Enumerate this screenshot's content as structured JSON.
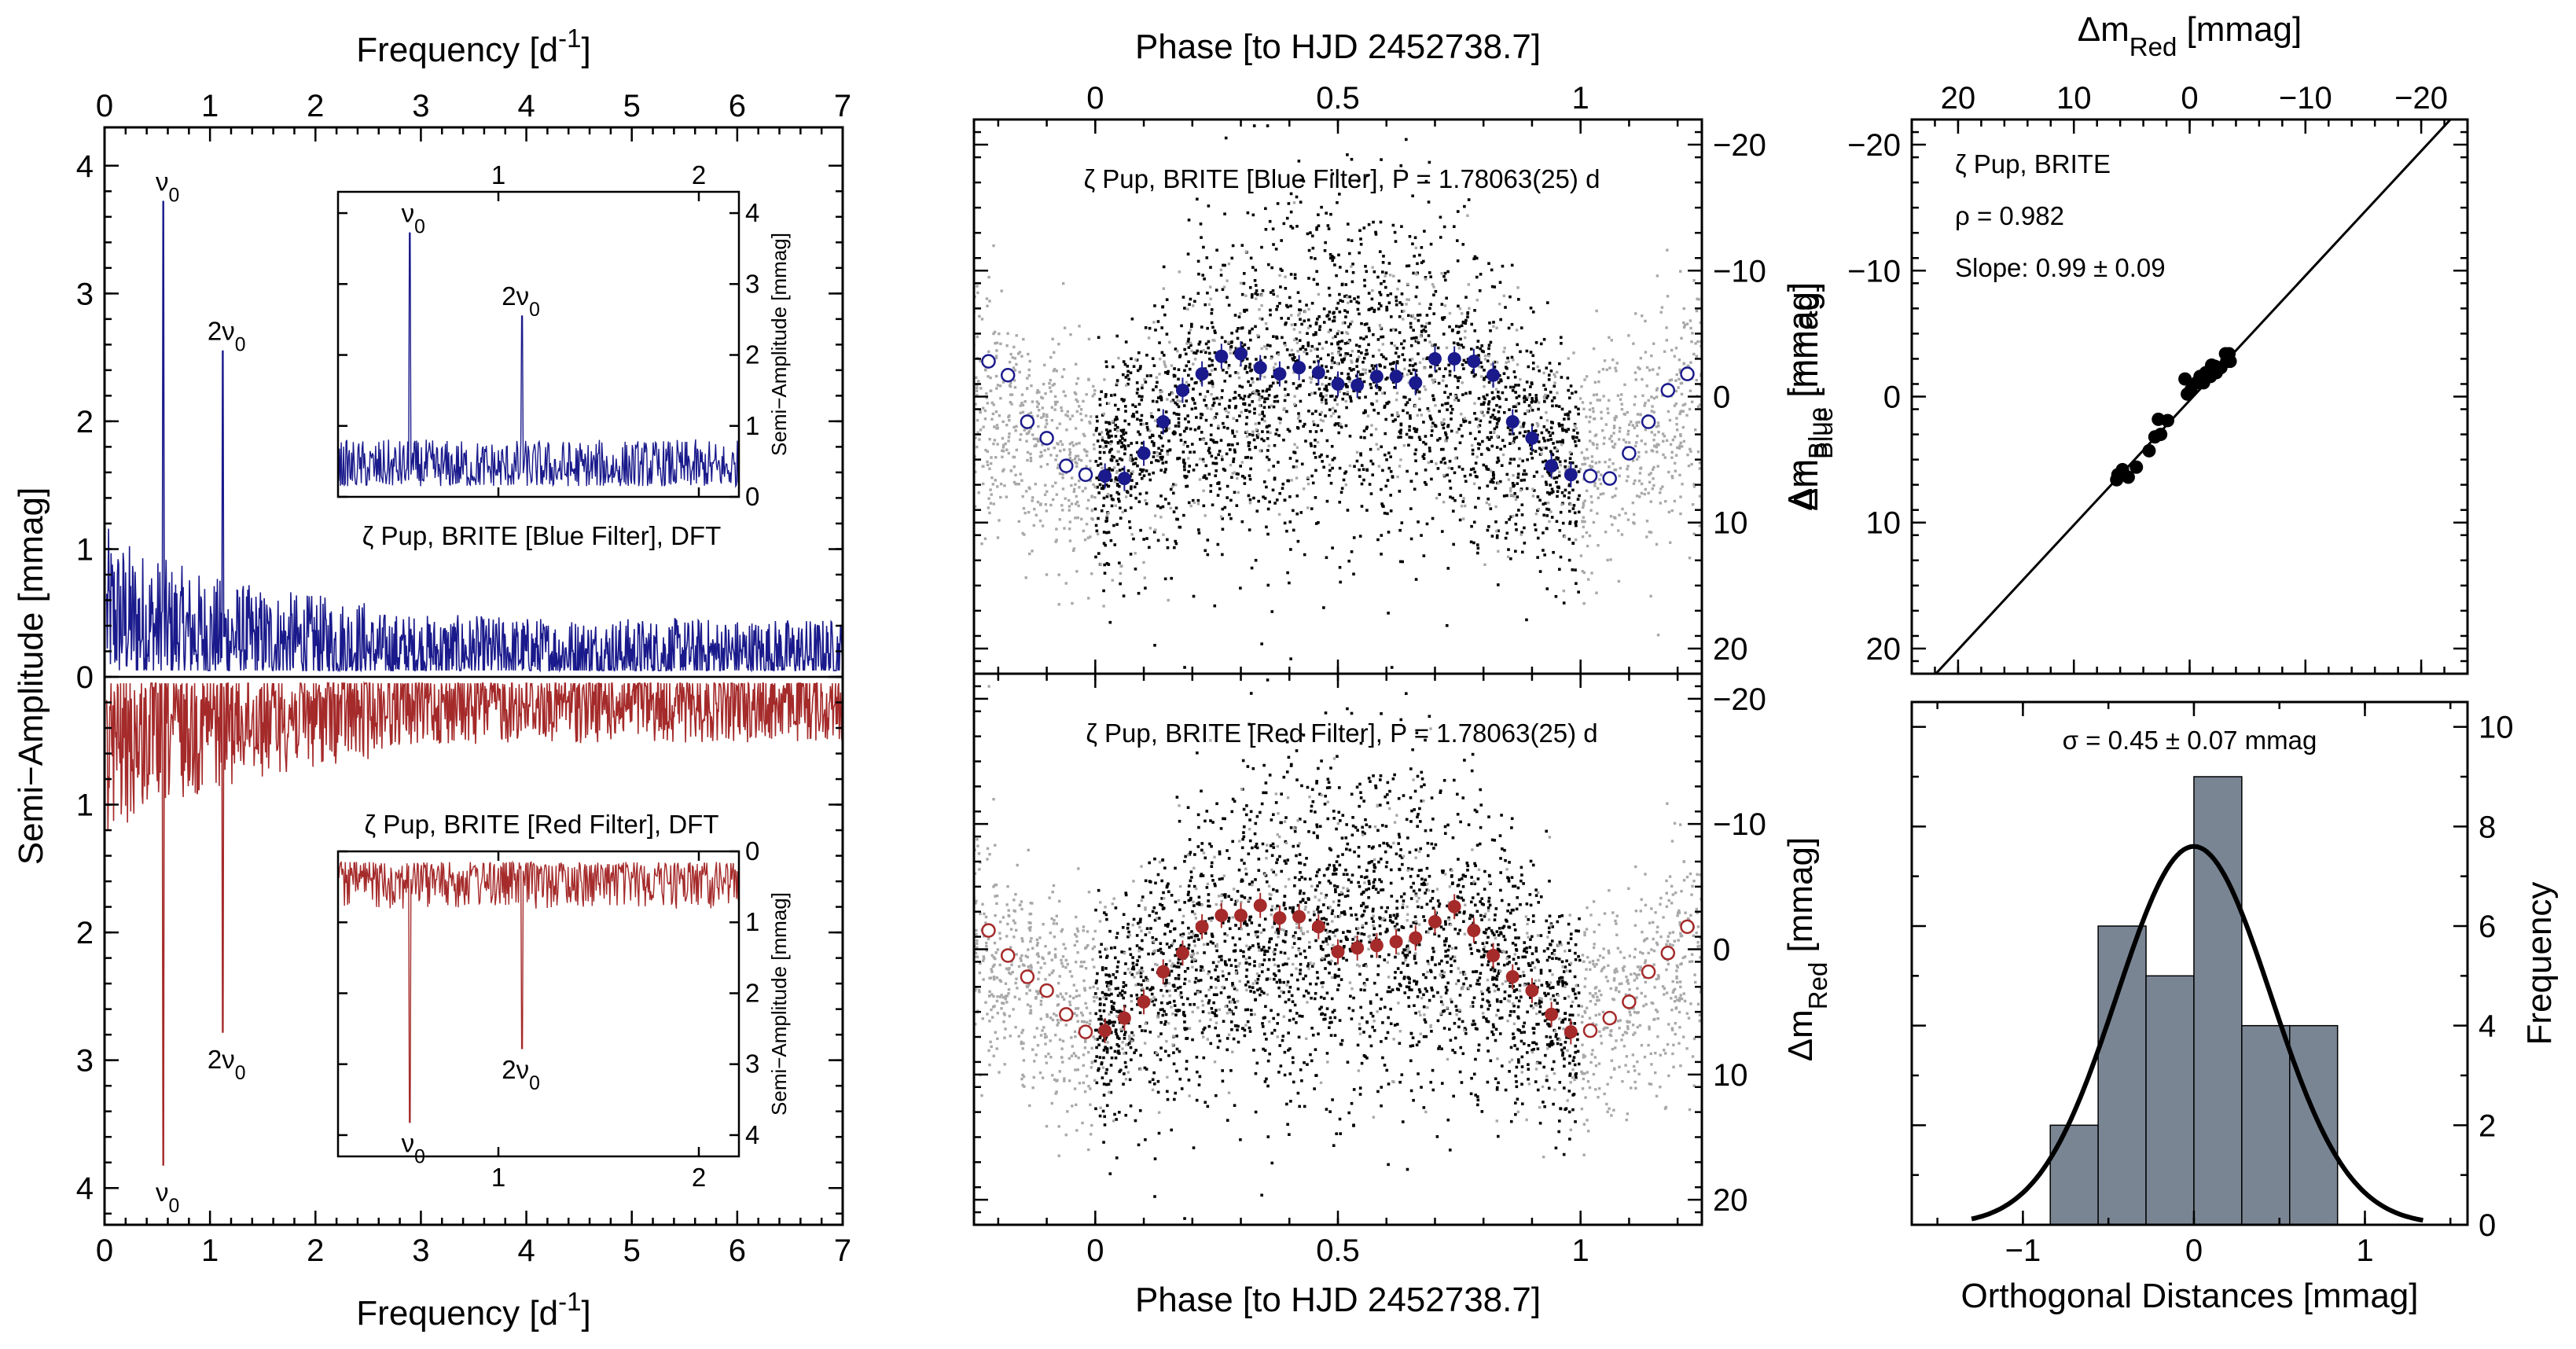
{
  "colors": {
    "blue": "#1a1a8c",
    "red": "#a52a2a",
    "black": "#000000",
    "gray": "#a8a8a8",
    "bar": "#7a8594"
  },
  "chart_data": [
    {
      "type": "line",
      "name": "amplitude-spectra",
      "xlabel_top": "Frequency [d^-1]",
      "xlabel_bottom": "Frequency [d^-1]",
      "ylabel": "Semi−Amplitude [mmag]",
      "xlim": [
        0,
        7
      ],
      "ylim": [
        -4.3,
        4.3
      ],
      "x_ticks": [
        "0",
        "1",
        "2",
        "3",
        "4",
        "5",
        "6",
        "7"
      ],
      "y_ticks": [
        "4",
        "3",
        "2",
        "1",
        "0",
        "1",
        "2",
        "3",
        "4"
      ],
      "series": [
        {
          "name": "BRITE Blue Filter",
          "peaks": [
            {
              "x": 0.56,
              "y": 3.72,
              "label": "v0"
            },
            {
              "x": 1.12,
              "y": 2.55,
              "label": "2v0"
            }
          ],
          "noise_level": 0.45
        },
        {
          "name": "BRITE Red Filter",
          "peaks": [
            {
              "x": 0.56,
              "y": 3.82,
              "label": "v0"
            },
            {
              "x": 1.12,
              "y": 2.78,
              "label": "2v0"
            }
          ],
          "noise_level": 0.5
        }
      ],
      "insets": [
        {
          "title": "ζ Pup, BRITE [Blue Filter], DFT",
          "ylabel": "Semi−Amplitude [mmag]",
          "xlim": [
            0.2,
            2.2
          ],
          "ylim": [
            0,
            4.3
          ],
          "x_ticks": [
            "1",
            "2"
          ],
          "y_ticks": [
            "0",
            "1",
            "2",
            "3",
            "4"
          ],
          "peak_labels": [
            "v0",
            "2v0"
          ]
        },
        {
          "title": "ζ Pup, BRITE [Red Filter], DFT",
          "ylabel": "Semi−Amplitude [mmag]",
          "xlim": [
            0.2,
            2.2
          ],
          "ylim": [
            0,
            4.3
          ],
          "x_ticks": [
            "1",
            "2"
          ],
          "y_ticks": [
            "0",
            "1",
            "2",
            "3",
            "4"
          ],
          "peak_labels": [
            "v0",
            "2v0"
          ]
        }
      ]
    },
    {
      "type": "scatter",
      "name": "phase-diagrams",
      "xlabel": "Phase [to HJD 2452738.7]",
      "xlim": [
        -0.25,
        1.25
      ],
      "x_ticks": [
        "0",
        "0.5",
        "1"
      ],
      "panels": [
        {
          "title": "ζ Pup, BRITE [Blue Filter],  P = 1.78063(25) d",
          "ylabel": "Δm_Blue [mmag]",
          "ylim": [
            22,
            -22
          ],
          "y_ticks": [
            "−20",
            "−10",
            "0",
            "10",
            "20"
          ],
          "binned": [
            [
              0.02,
              6.3
            ],
            [
              0.06,
              6.5
            ],
            [
              0.1,
              4.5
            ],
            [
              0.14,
              2
            ],
            [
              0.18,
              -0.5
            ],
            [
              0.22,
              -1.8
            ],
            [
              0.26,
              -3.2
            ],
            [
              0.3,
              -3.4
            ],
            [
              0.34,
              -2.3
            ],
            [
              0.38,
              -1.8
            ],
            [
              0.42,
              -2.3
            ],
            [
              0.46,
              -1.9
            ],
            [
              0.5,
              -1.0
            ],
            [
              0.54,
              -0.9
            ],
            [
              0.58,
              -1.6
            ],
            [
              0.62,
              -1.6
            ],
            [
              0.66,
              -1.1
            ],
            [
              0.7,
              -3.0
            ],
            [
              0.74,
              -3.0
            ],
            [
              0.78,
              -2.8
            ],
            [
              0.82,
              -1.7
            ],
            [
              0.86,
              2.0
            ],
            [
              0.9,
              3.3
            ],
            [
              0.94,
              5.5
            ],
            [
              0.98,
              6.2
            ]
          ]
        },
        {
          "title": "ζ Pup, BRITE [Red Filter],  P = 1.78063(25) d",
          "ylabel": "Δm_Red [mmag]",
          "ylim": [
            22,
            -22
          ],
          "y_ticks": [
            "−20",
            "−10",
            "0",
            "10",
            "20"
          ],
          "binned": [
            [
              0.02,
              6.5
            ],
            [
              0.06,
              5.5
            ],
            [
              0.1,
              4.2
            ],
            [
              0.14,
              1.8
            ],
            [
              0.18,
              0.3
            ],
            [
              0.22,
              -1.8
            ],
            [
              0.26,
              -2.7
            ],
            [
              0.3,
              -2.7
            ],
            [
              0.34,
              -3.5
            ],
            [
              0.38,
              -2.5
            ],
            [
              0.42,
              -2.6
            ],
            [
              0.46,
              -1.8
            ],
            [
              0.5,
              0.2
            ],
            [
              0.54,
              -0.1
            ],
            [
              0.58,
              -0.3
            ],
            [
              0.62,
              -0.6
            ],
            [
              0.66,
              -0.9
            ],
            [
              0.7,
              -2.2
            ],
            [
              0.74,
              -3.4
            ],
            [
              0.78,
              -1.5
            ],
            [
              0.82,
              0.5
            ],
            [
              0.86,
              2.2
            ],
            [
              0.9,
              3.3
            ],
            [
              0.94,
              5.2
            ],
            [
              0.98,
              6.6
            ]
          ]
        }
      ]
    },
    {
      "type": "scatter",
      "name": "blue-vs-red",
      "xlabel": "Δm_Red [mmag]",
      "ylabel": "Δm_Blue [mmag]",
      "xlim": [
        24,
        -24
      ],
      "ylim": [
        22,
        -22
      ],
      "x_ticks": [
        "20",
        "10",
        "0",
        "−10",
        "−20"
      ],
      "y_ticks": [
        "−20",
        "−10",
        "0",
        "10",
        "20"
      ],
      "annotations": [
        "ζ Pup, BRITE",
        "ρ = 0.982",
        "Slope: 0.99 ± 0.09"
      ],
      "points": [
        [
          6.2,
          6.2
        ],
        [
          6.3,
          6.6
        ],
        [
          5.8,
          5.8
        ],
        [
          5.3,
          6.4
        ],
        [
          4.6,
          5.6
        ],
        [
          3.5,
          4.3
        ],
        [
          3.0,
          3.2
        ],
        [
          2.5,
          3.0
        ],
        [
          2.7,
          1.8
        ],
        [
          1.9,
          1.9
        ],
        [
          0.2,
          -0.2
        ],
        [
          -0.1,
          -0.5
        ],
        [
          -0.6,
          -1.1
        ],
        [
          -0.9,
          -1.6
        ],
        [
          -1.4,
          -1.9
        ],
        [
          -1.6,
          -1.9
        ],
        [
          -1.8,
          -1.6
        ],
        [
          -1.9,
          -2.5
        ],
        [
          -2.3,
          -1.9
        ],
        [
          -2.2,
          -2.4
        ],
        [
          -2.7,
          -2.3
        ],
        [
          -3.2,
          -2.8
        ],
        [
          -3.4,
          -3.4
        ],
        [
          -3.5,
          -2.8
        ],
        [
          -3.1,
          -3.4
        ],
        [
          -1.2,
          -1.1
        ],
        [
          0.4,
          -1.4
        ]
      ]
    },
    {
      "type": "bar",
      "name": "orthogonal-distance-histogram",
      "xlabel": "Orthogonal Distances [mmag]",
      "ylabel": "Frequency",
      "annotation": "σ = 0.45 ± 0.07 mmag",
      "xlim": [
        -1.65,
        1.6
      ],
      "ylim": [
        0,
        10.5
      ],
      "x_ticks": [
        "−1",
        "0",
        "1"
      ],
      "y_ticks": [
        "0",
        "2",
        "4",
        "6",
        "8",
        "10"
      ],
      "bins": [
        [
          -0.84,
          -0.56,
          2
        ],
        [
          -0.56,
          -0.28,
          6
        ],
        [
          -0.28,
          0.0,
          5
        ],
        [
          0.0,
          0.28,
          9
        ],
        [
          0.28,
          0.56,
          4
        ],
        [
          0.56,
          0.84,
          4
        ]
      ],
      "gaussian": {
        "mean": 0.0,
        "sigma": 0.45,
        "peak": 7.6
      }
    }
  ]
}
